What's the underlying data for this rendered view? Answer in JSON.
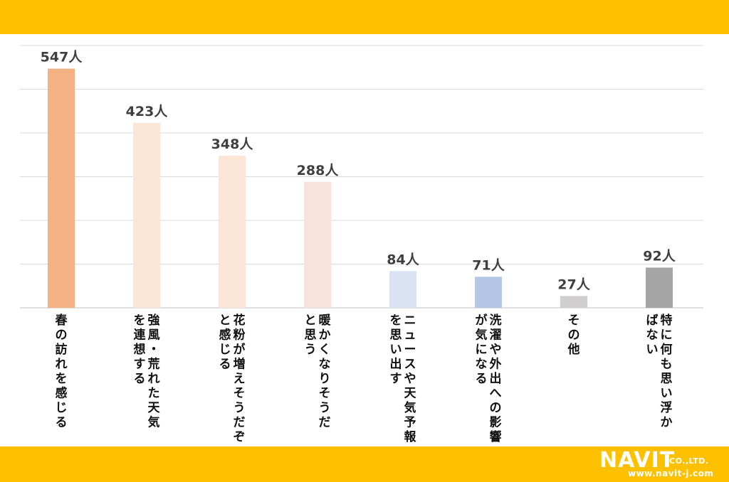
{
  "theme": {
    "band_color": "#FFC000",
    "grid_color": "#d9d9d9",
    "axis_color": "#bfbfbf"
  },
  "chart_data": {
    "type": "bar",
    "title": "",
    "xlabel": "",
    "ylabel": "",
    "ylim": [
      0,
      600
    ],
    "grid": true,
    "categories": [
      "春の訪れを感じる",
      "強風・荒れた天気を連想する",
      "花粉が増えそうだと感じる",
      "暖かくなりそうだと思う",
      "ニュースや天気予報を思い出す",
      "洗濯や外出への影響が気になる",
      "その他",
      "特に何も思い浮かばない"
    ],
    "category_lines": [
      [
        "春の訪れを感じる"
      ],
      [
        "強風・荒れた天気",
        "を連想する"
      ],
      [
        "花粉が増えそうだぞ",
        "と感じる"
      ],
      [
        "暖かくなりそうだ",
        "と思う"
      ],
      [
        "ニュースや天気予報",
        "を思い出す"
      ],
      [
        "洗濯や外出への影響",
        "が気になる"
      ],
      [
        "その他"
      ],
      [
        "特に何も思い浮か",
        "ばない"
      ]
    ],
    "values": [
      547,
      423,
      348,
      288,
      84,
      71,
      27,
      92
    ],
    "value_labels": [
      "547人",
      "423人",
      "348人",
      "288人",
      "84人",
      "71人",
      "27人",
      "92人"
    ],
    "colors": [
      "#F4B183",
      "#FBE5D6",
      "#FBE5D6",
      "#F8E3DA",
      "#DAE3F3",
      "#B4C7E7",
      "#D0CECE",
      "#A5A5A5"
    ]
  },
  "logo": {
    "main": "NAVIT",
    "company": "CO.,LTD.",
    "url": "www.navit-j.com"
  }
}
